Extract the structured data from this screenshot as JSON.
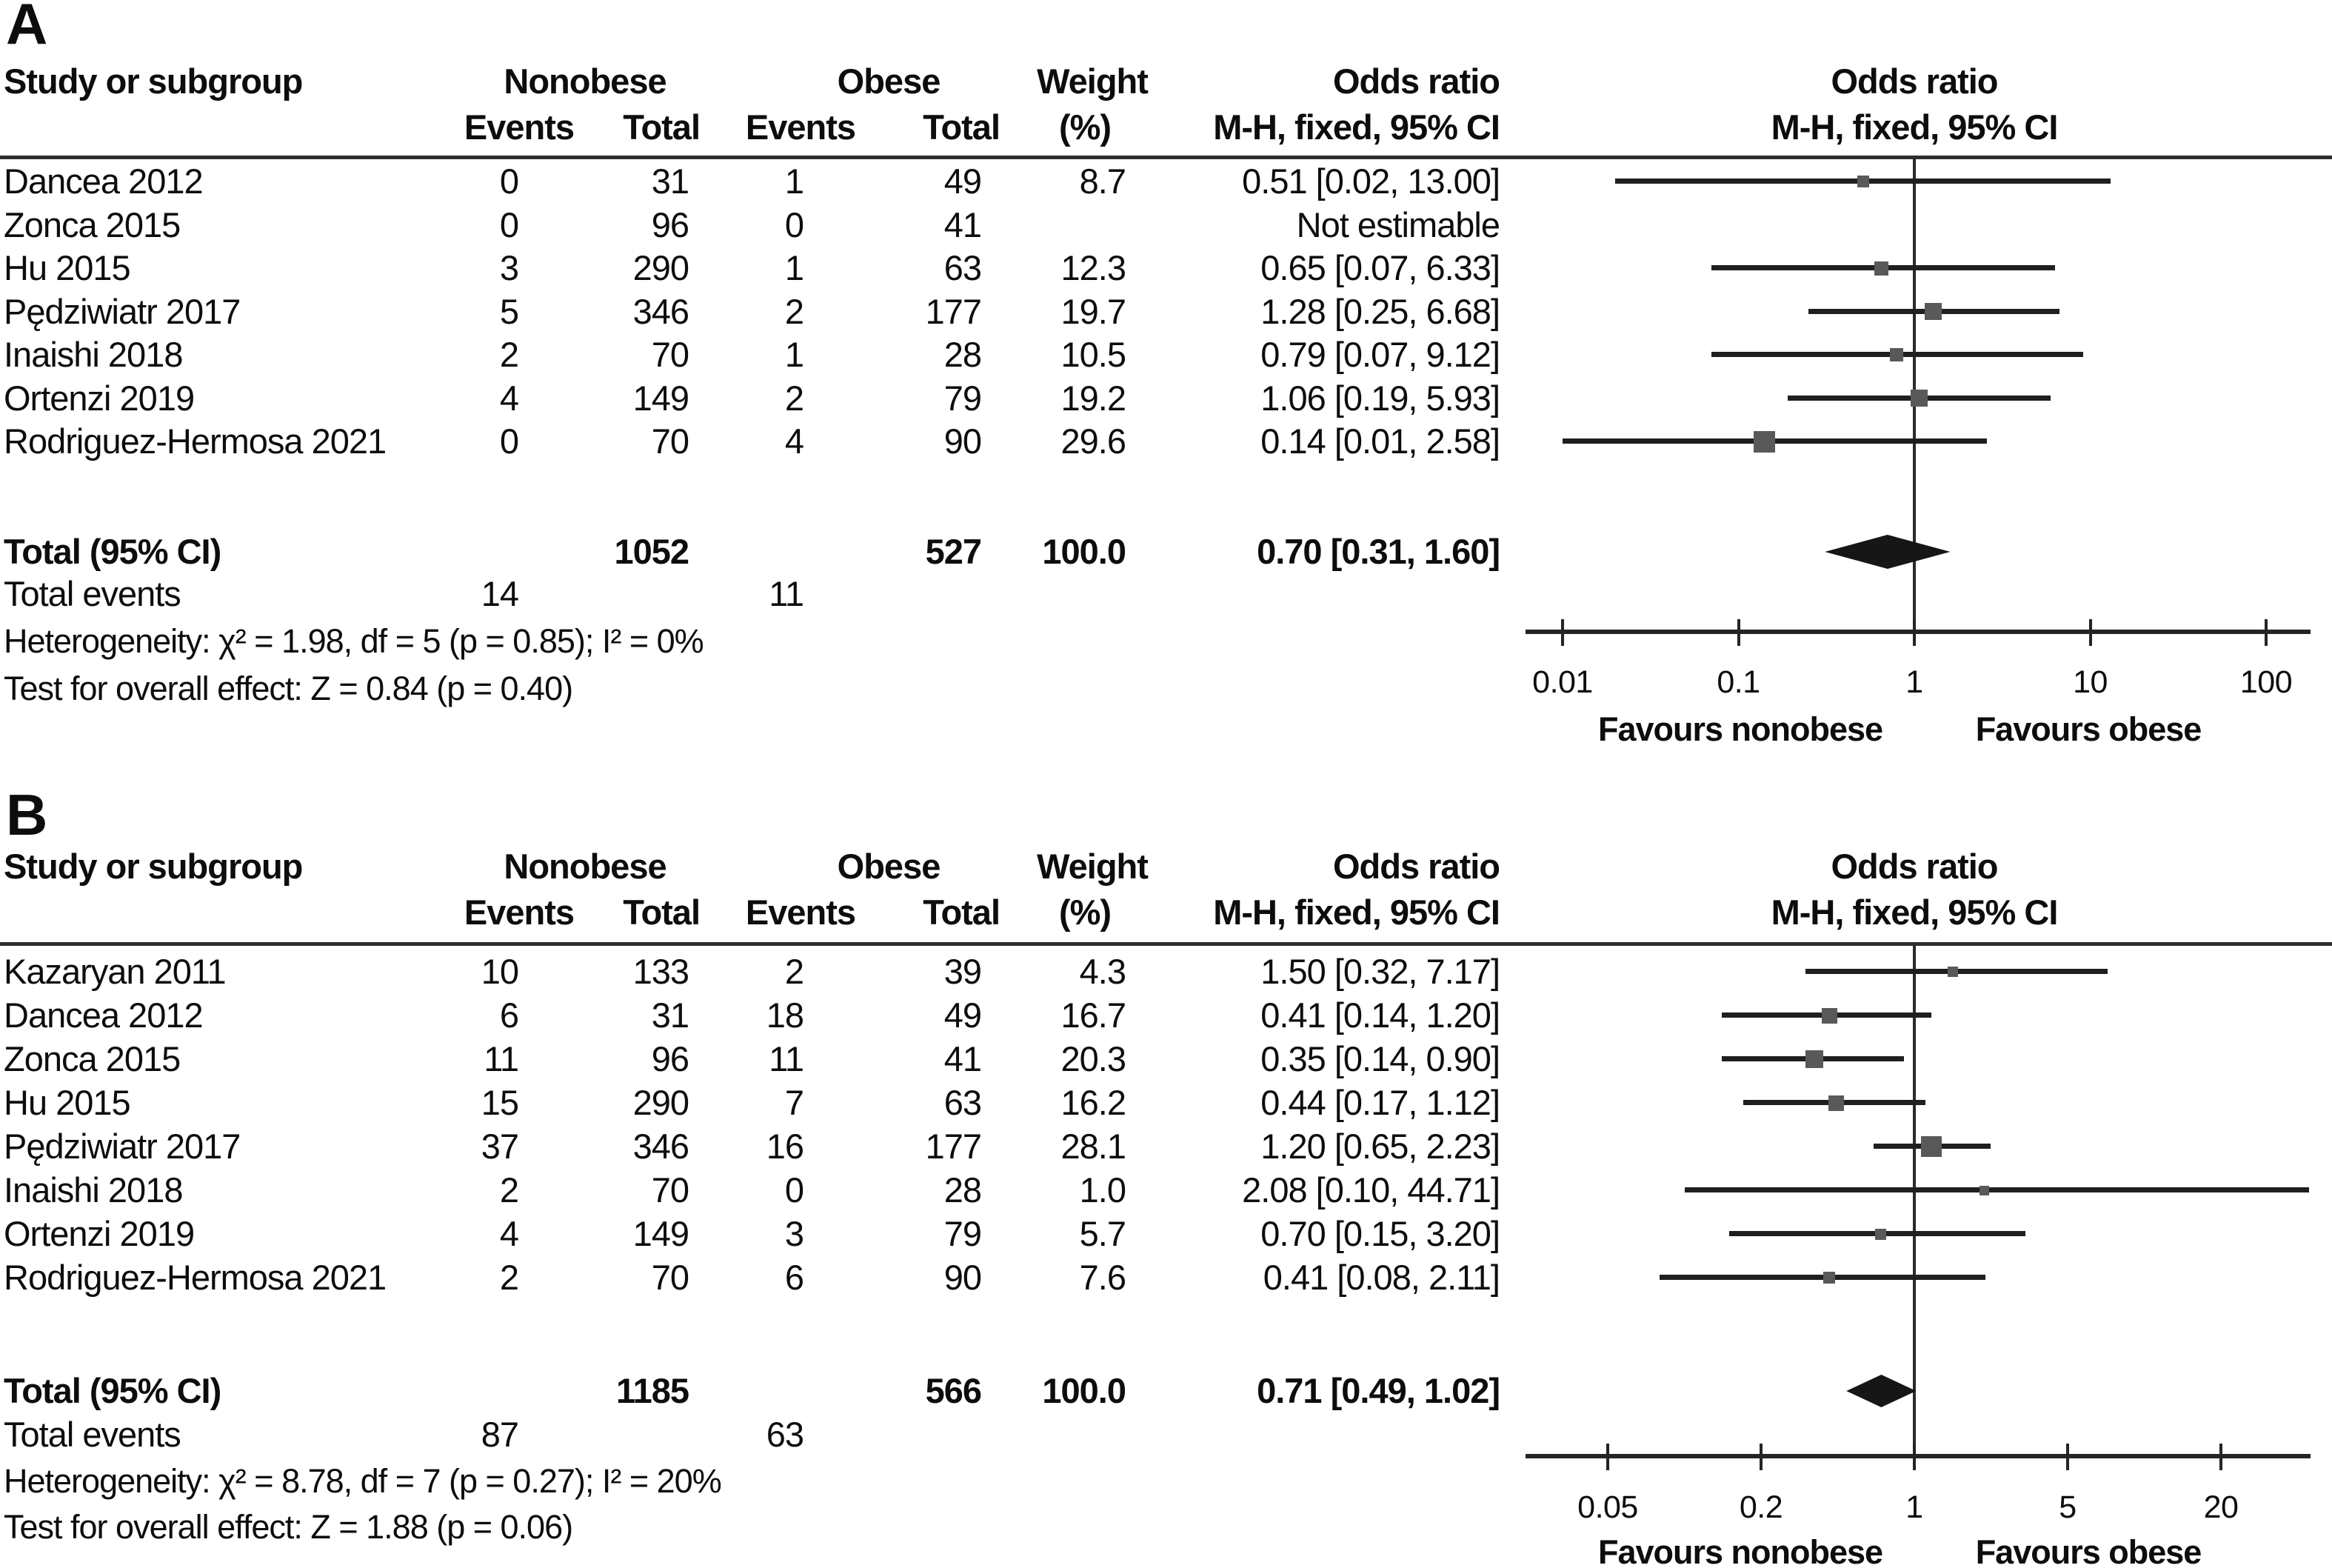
{
  "colors": {
    "text": "#0d0d0d",
    "rule": "#2e2e2e",
    "ci_line": "#1f1f1f",
    "square": "#595959",
    "diamond": "#161616",
    "background": "#ffffff"
  },
  "column_headers": {
    "study": "Study or subgroup",
    "nonobese": "Nonobese",
    "obese": "Obese",
    "events": "Events",
    "total": "Total",
    "weight": "Weight",
    "weight_unit": "(%)",
    "odds_ratio": "Odds ratio",
    "method": "M-H, fixed, 95% CI"
  },
  "chart_data": [
    {
      "type": "forest",
      "panel_label": "A",
      "effect_measure": "Odds ratio",
      "method": "M-H, fixed, 95% CI",
      "x_scale": "log",
      "x_ticks": [
        0.01,
        0.1,
        1,
        10,
        100
      ],
      "x_tick_labels": [
        "0.01",
        "0.1",
        "1",
        "10",
        "100"
      ],
      "favours_left": "Favours nonobese",
      "favours_right": "Favours obese",
      "studies": [
        {
          "name": "Dancea 2012",
          "nonobese_events": "0",
          "nonobese_total": "31",
          "obese_events": "1",
          "obese_total": "49",
          "weight": "8.7",
          "weight_value": 8.7,
          "or_ci": "0.51 [0.02, 13.00]",
          "or": 0.51,
          "ci_low": 0.02,
          "ci_high": 13.0
        },
        {
          "name": "Zonca 2015",
          "nonobese_events": "0",
          "nonobese_total": "96",
          "obese_events": "0",
          "obese_total": "41",
          "weight": "",
          "weight_value": 0,
          "or_ci": "Not estimable",
          "or": null,
          "ci_low": null,
          "ci_high": null
        },
        {
          "name": "Hu 2015",
          "nonobese_events": "3",
          "nonobese_total": "290",
          "obese_events": "1",
          "obese_total": "63",
          "weight": "12.3",
          "weight_value": 12.3,
          "or_ci": "0.65 [0.07, 6.33]",
          "or": 0.65,
          "ci_low": 0.07,
          "ci_high": 6.33
        },
        {
          "name": "Pędziwiatr 2017",
          "nonobese_events": "5",
          "nonobese_total": "346",
          "obese_events": "2",
          "obese_total": "177",
          "weight": "19.7",
          "weight_value": 19.7,
          "or_ci": "1.28 [0.25, 6.68]",
          "or": 1.28,
          "ci_low": 0.25,
          "ci_high": 6.68
        },
        {
          "name": "Inaishi 2018",
          "nonobese_events": "2",
          "nonobese_total": "70",
          "obese_events": "1",
          "obese_total": "28",
          "weight": "10.5",
          "weight_value": 10.5,
          "or_ci": "0.79 [0.07, 9.12]",
          "or": 0.79,
          "ci_low": 0.07,
          "ci_high": 9.12
        },
        {
          "name": "Ortenzi 2019",
          "nonobese_events": "4",
          "nonobese_total": "149",
          "obese_events": "2",
          "obese_total": "79",
          "weight": "19.2",
          "weight_value": 19.2,
          "or_ci": "1.06 [0.19, 5.93]",
          "or": 1.06,
          "ci_low": 0.19,
          "ci_high": 5.93
        },
        {
          "name": "Rodriguez-Hermosa 2021",
          "nonobese_events": "0",
          "nonobese_total": "70",
          "obese_events": "4",
          "obese_total": "90",
          "weight": "29.6",
          "weight_value": 29.6,
          "or_ci": "0.14 [0.01, 2.58]",
          "or": 0.14,
          "ci_low": 0.01,
          "ci_high": 2.58
        }
      ],
      "total": {
        "label": "Total (95% CI)",
        "nonobese_total": "1052",
        "obese_total": "527",
        "weight": "100.0",
        "or_ci": "0.70 [0.31, 1.60]",
        "or": 0.7,
        "ci_low": 0.31,
        "ci_high": 1.6
      },
      "total_events": {
        "label": "Total events",
        "nonobese": "14",
        "obese": "11"
      },
      "heterogeneity": "Heterogeneity: χ² = 1.98, df = 5 (p = 0.85); I² = 0%",
      "overall_effect": "Test for overall effect: Z = 0.84 (p = 0.40)"
    },
    {
      "type": "forest",
      "panel_label": "B",
      "effect_measure": "Odds ratio",
      "method": "M-H, fixed, 95% CI",
      "x_scale": "log",
      "x_ticks": [
        0.05,
        0.2,
        1,
        5,
        20
      ],
      "x_tick_labels": [
        "0.05",
        "0.2",
        "1",
        "5",
        "20"
      ],
      "favours_left": "Favours nonobese",
      "favours_right": "Favours obese",
      "studies": [
        {
          "name": "Kazaryan 2011",
          "nonobese_events": "10",
          "nonobese_total": "133",
          "obese_events": "2",
          "obese_total": "39",
          "weight": "4.3",
          "weight_value": 4.3,
          "or_ci": "1.50 [0.32, 7.17]",
          "or": 1.5,
          "ci_low": 0.32,
          "ci_high": 7.17
        },
        {
          "name": "Dancea 2012",
          "nonobese_events": "6",
          "nonobese_total": "31",
          "obese_events": "18",
          "obese_total": "49",
          "weight": "16.7",
          "weight_value": 16.7,
          "or_ci": "0.41 [0.14, 1.20]",
          "or": 0.41,
          "ci_low": 0.14,
          "ci_high": 1.2
        },
        {
          "name": "Zonca 2015",
          "nonobese_events": "11",
          "nonobese_total": "96",
          "obese_events": "11",
          "obese_total": "41",
          "weight": "20.3",
          "weight_value": 20.3,
          "or_ci": "0.35 [0.14, 0.90]",
          "or": 0.35,
          "ci_low": 0.14,
          "ci_high": 0.9
        },
        {
          "name": "Hu 2015",
          "nonobese_events": "15",
          "nonobese_total": "290",
          "obese_events": "7",
          "obese_total": "63",
          "weight": "16.2",
          "weight_value": 16.2,
          "or_ci": "0.44 [0.17, 1.12]",
          "or": 0.44,
          "ci_low": 0.17,
          "ci_high": 1.12
        },
        {
          "name": "Pędziwiatr 2017",
          "nonobese_events": "37",
          "nonobese_total": "346",
          "obese_events": "16",
          "obese_total": "177",
          "weight": "28.1",
          "weight_value": 28.1,
          "or_ci": "1.20 [0.65, 2.23]",
          "or": 1.2,
          "ci_low": 0.65,
          "ci_high": 2.23
        },
        {
          "name": "Inaishi 2018",
          "nonobese_events": "2",
          "nonobese_total": "70",
          "obese_events": "0",
          "obese_total": "28",
          "weight": "1.0",
          "weight_value": 1.0,
          "or_ci": "2.08 [0.10, 44.71]",
          "or": 2.08,
          "ci_low": 0.1,
          "ci_high": 44.71
        },
        {
          "name": "Ortenzi 2019",
          "nonobese_events": "4",
          "nonobese_total": "149",
          "obese_events": "3",
          "obese_total": "79",
          "weight": "5.7",
          "weight_value": 5.7,
          "or_ci": "0.70 [0.15, 3.20]",
          "or": 0.7,
          "ci_low": 0.15,
          "ci_high": 3.2
        },
        {
          "name": "Rodriguez-Hermosa 2021",
          "nonobese_events": "2",
          "nonobese_total": "70",
          "obese_events": "6",
          "obese_total": "90",
          "weight": "7.6",
          "weight_value": 7.6,
          "or_ci": "0.41 [0.08, 2.11]",
          "or": 0.41,
          "ci_low": 0.08,
          "ci_high": 2.11
        }
      ],
      "total": {
        "label": "Total (95% CI)",
        "nonobese_total": "1185",
        "obese_total": "566",
        "weight": "100.0",
        "or_ci": "0.71 [0.49, 1.02]",
        "or": 0.71,
        "ci_low": 0.49,
        "ci_high": 1.02
      },
      "total_events": {
        "label": "Total events",
        "nonobese": "87",
        "obese": "63"
      },
      "heterogeneity": "Heterogeneity: χ² = 8.78, df = 7 (p = 0.27); I² = 20%",
      "overall_effect": "Test for overall effect: Z = 1.88 (p = 0.06)"
    }
  ]
}
